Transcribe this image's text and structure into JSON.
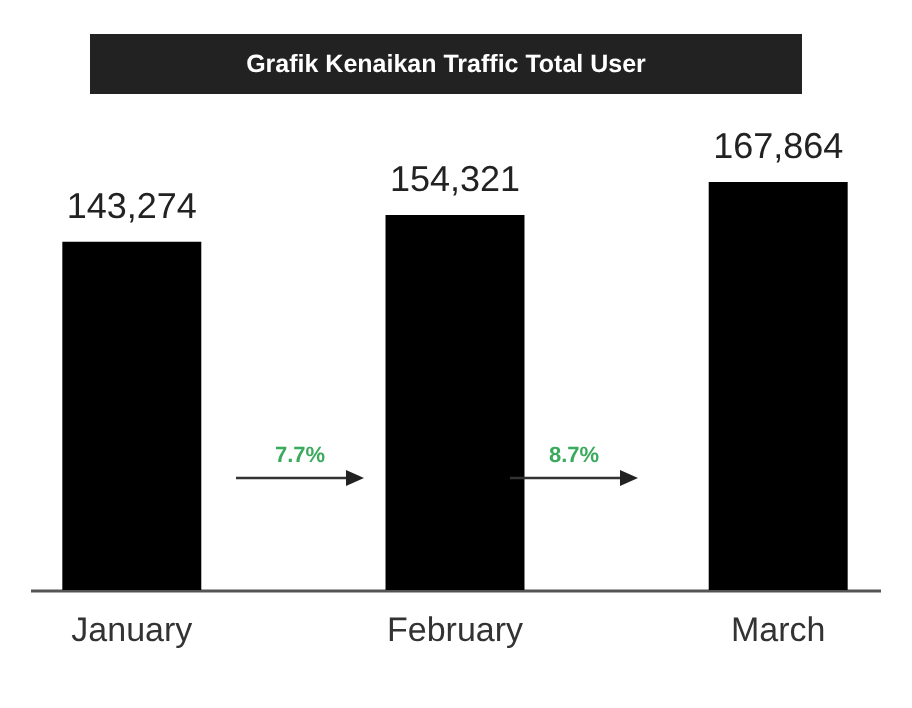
{
  "chart_data": {
    "type": "bar",
    "title": "Grafik Kenaikan Traffic Total User",
    "categories": [
      "January",
      "February",
      "March"
    ],
    "values": [
      143274,
      154321,
      167864
    ],
    "value_labels": [
      "143,274",
      "154,321",
      "167,864"
    ],
    "color": "#000000",
    "grid": false,
    "annotations": [
      "7.7%",
      "8.7%"
    ]
  }
}
